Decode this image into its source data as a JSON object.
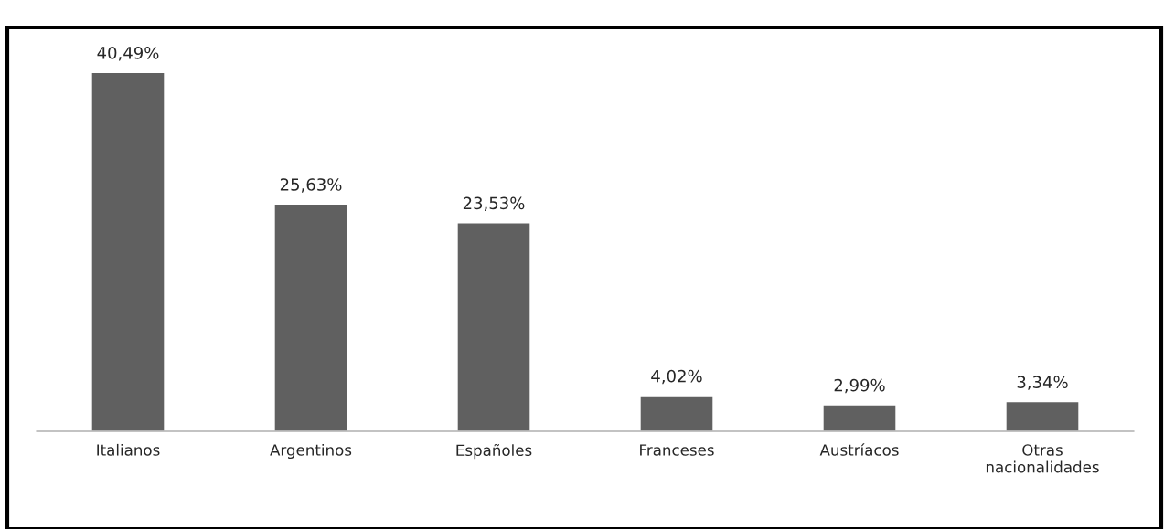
{
  "chart_data": {
    "type": "bar",
    "categories": [
      "Italianos",
      "Argentinos",
      "Españoles",
      "Franceses",
      "Austríacos",
      "Otras\nnacionalidades"
    ],
    "values": [
      40.49,
      25.63,
      23.53,
      4.02,
      2.99,
      3.34
    ],
    "value_labels": [
      "40,49%",
      "25,63%",
      "23,53%",
      "4,02%",
      "2,99%",
      "3,34%"
    ],
    "color": "#606060",
    "grid": false,
    "legend": false
  }
}
